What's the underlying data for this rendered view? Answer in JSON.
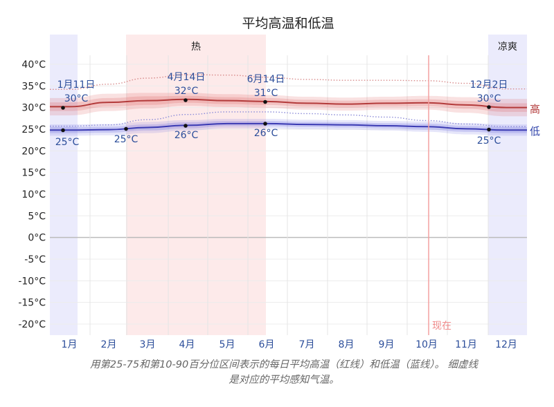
{
  "chart_data": {
    "type": "line",
    "title": "平均高温和低温",
    "xlabel": "",
    "ylabel": "",
    "ylim": [
      -20,
      40
    ],
    "y_ticks": [
      "40°C",
      "35°C",
      "30°C",
      "25°C",
      "20°C",
      "15°C",
      "10°C",
      "5°C",
      "0°C",
      "-5°C",
      "-10°C",
      "-15°C",
      "-20°C"
    ],
    "y_tick_values": [
      40,
      35,
      30,
      25,
      20,
      15,
      10,
      5,
      0,
      -5,
      -10,
      -15,
      -20
    ],
    "categories": [
      "1月",
      "2月",
      "3月",
      "4月",
      "5月",
      "6月",
      "7月",
      "8月",
      "9月",
      "10月",
      "11月",
      "12月"
    ],
    "grid": true,
    "series": [
      {
        "name": "高",
        "color": "#b33a3a",
        "values": [
          30.2,
          31.2,
          31.6,
          31.9,
          31.6,
          31.4,
          31.0,
          30.8,
          31.0,
          31.1,
          30.6,
          30.0
        ],
        "band_25_75": [
          1.0,
          1.0,
          1.0,
          0.8,
          0.8,
          0.8,
          0.8,
          0.8,
          0.8,
          0.8,
          0.9,
          1.0
        ],
        "band_10_90": [
          2.0,
          2.0,
          1.8,
          1.5,
          1.5,
          1.5,
          1.5,
          1.5,
          1.5,
          1.6,
          1.8,
          2.0
        ],
        "feels_like": [
          34.2,
          35.4,
          36.8,
          37.6,
          37.5,
          37.0,
          36.5,
          36.3,
          36.3,
          36.2,
          35.6,
          34.3
        ]
      },
      {
        "name": "低",
        "color": "#3a3ab3",
        "values": [
          24.8,
          24.9,
          25.4,
          25.9,
          26.3,
          26.3,
          26.1,
          26.0,
          25.8,
          25.6,
          25.1,
          24.8
        ],
        "band_25_75": [
          0.7,
          0.7,
          0.7,
          0.7,
          0.6,
          0.6,
          0.6,
          0.6,
          0.6,
          0.7,
          0.7,
          0.7
        ],
        "band_10_90": [
          1.3,
          1.3,
          1.3,
          1.2,
          1.1,
          1.1,
          1.1,
          1.1,
          1.1,
          1.2,
          1.3,
          1.3
        ],
        "feels_like": [
          25.7,
          26.0,
          27.2,
          28.4,
          29.0,
          29.0,
          28.6,
          28.3,
          27.8,
          27.0,
          26.2,
          25.6
        ]
      }
    ],
    "annotations": [
      {
        "date": "1月11日",
        "high": "30°C",
        "low": "25°C"
      },
      {
        "date": "",
        "high": "",
        "low": "25°C"
      },
      {
        "date": "4月14日",
        "high": "32°C",
        "low": "26°C"
      },
      {
        "date": "6月14日",
        "high": "31°C",
        "low": "26°C"
      },
      {
        "date": "12月2日",
        "high": "30°C",
        "low": "25°C"
      }
    ],
    "seasons": [
      {
        "label": "热",
        "start": "3月初",
        "end": "6月中",
        "color": "#fdeaea"
      },
      {
        "label": "凉爽",
        "start": "12月初",
        "end": "12月底",
        "color": "#ebebfc"
      },
      {
        "label": "",
        "start": "1月初",
        "end": "1月中",
        "color": "#ebebfc"
      }
    ],
    "now_marker": {
      "label": "现在",
      "position": "10月初",
      "color": "#f08a8a"
    },
    "legend": {
      "high": "高",
      "low": "低",
      "position": "right-end"
    }
  },
  "labels": {
    "title": "平均高温和低温",
    "band_hot": "热",
    "band_cool": "凉爽",
    "now": "现在",
    "high": "高",
    "low": "低",
    "ann_jan_date": "1月11日",
    "ann_jan_high": "30°C",
    "ann_jan_low": "25°C",
    "ann_mar_low": "25°C",
    "ann_apr_date": "4月14日",
    "ann_apr_high": "32°C",
    "ann_apr_low": "26°C",
    "ann_jun_date": "6月14日",
    "ann_jun_high": "31°C",
    "ann_jun_low": "26°C",
    "ann_dec_date": "12月2日",
    "ann_dec_high": "30°C",
    "ann_dec_low": "25°C"
  },
  "caption": {
    "line1": "用第25-75和第10-90百分位区间表示的每日平均高温（红线）和低温（蓝线）。 细虚线",
    "line2": "是对应的平均感知气温。"
  }
}
